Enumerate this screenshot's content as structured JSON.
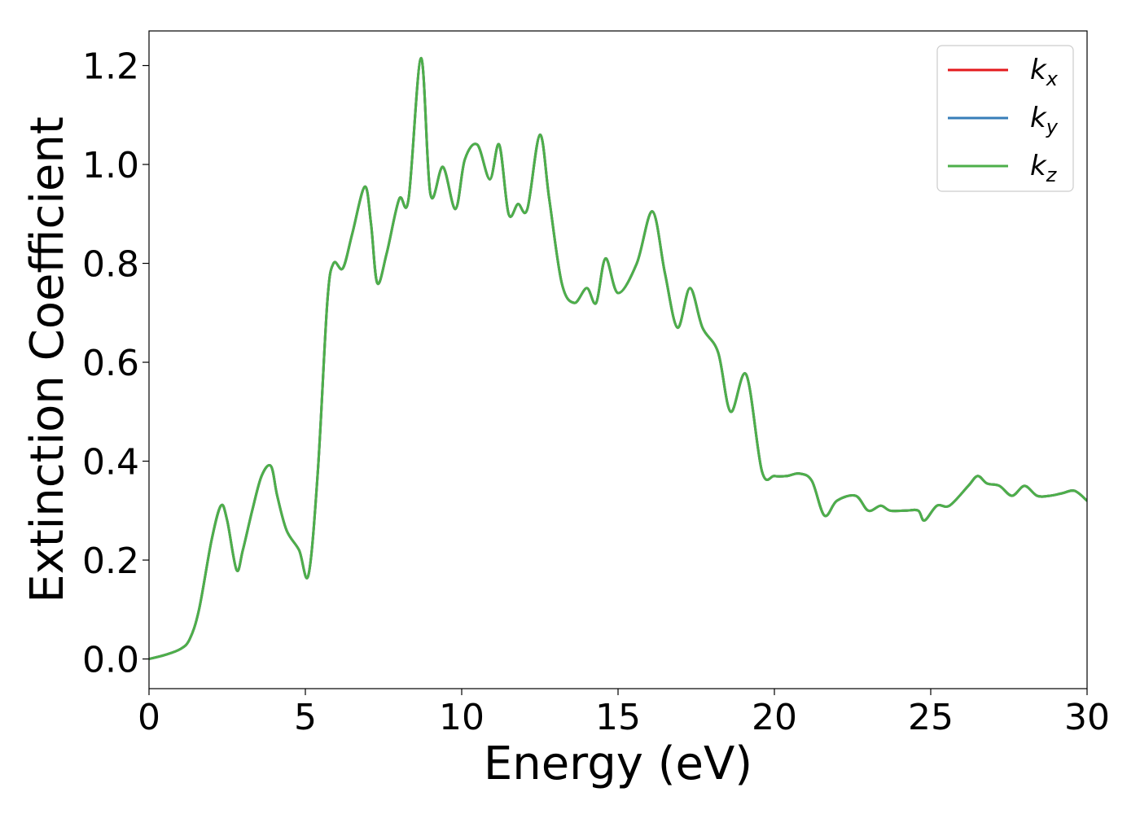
{
  "chart_data": {
    "type": "line",
    "xlabel": "Energy (eV)",
    "ylabel": "Extinction Coefficient",
    "xlim": [
      0,
      30
    ],
    "ylim": [
      -0.06,
      1.27
    ],
    "xticks": [
      "0",
      "5",
      "10",
      "15",
      "20",
      "25",
      "30"
    ],
    "yticks": [
      "0.0",
      "0.2",
      "0.4",
      "0.6",
      "0.8",
      "1.0",
      "1.2"
    ],
    "grid": false,
    "legend_position": "top-right",
    "series": [
      {
        "name": "k_x",
        "label_main": "k",
        "label_sub": "x",
        "color": "#e41a1c",
        "x": [
          0,
          0.5,
          1.0,
          1.3,
          1.6,
          2.0,
          2.3,
          2.5,
          2.8,
          3.0,
          3.3,
          3.6,
          3.9,
          4.1,
          4.4,
          4.8,
          5.1,
          5.4,
          5.7,
          5.9,
          6.2,
          6.5,
          6.9,
          7.1,
          7.3,
          7.6,
          8.0,
          8.3,
          8.7,
          9.0,
          9.4,
          9.8,
          10.1,
          10.5,
          10.9,
          11.2,
          11.5,
          11.8,
          12.1,
          12.5,
          12.8,
          13.2,
          13.6,
          14.0,
          14.3,
          14.6,
          15.0,
          15.6,
          16.1,
          16.5,
          16.9,
          17.3,
          17.7,
          18.2,
          18.6,
          19.1,
          19.6,
          20.0,
          20.4,
          20.8,
          21.2,
          21.6,
          22.0,
          22.6,
          23.0,
          23.4,
          23.7,
          24.2,
          24.6,
          24.8,
          25.2,
          25.6,
          26.2,
          26.5,
          26.8,
          27.2,
          27.6,
          28.0,
          28.4,
          28.8,
          29.2,
          29.6,
          30.0
        ],
        "y": [
          0.0,
          0.008,
          0.02,
          0.04,
          0.1,
          0.24,
          0.31,
          0.28,
          0.18,
          0.22,
          0.3,
          0.37,
          0.39,
          0.33,
          0.26,
          0.22,
          0.17,
          0.38,
          0.72,
          0.8,
          0.79,
          0.86,
          0.955,
          0.88,
          0.76,
          0.82,
          0.93,
          0.93,
          1.215,
          0.94,
          0.995,
          0.91,
          1.01,
          1.04,
          0.97,
          1.04,
          0.9,
          0.92,
          0.91,
          1.06,
          0.93,
          0.76,
          0.72,
          0.75,
          0.72,
          0.81,
          0.74,
          0.8,
          0.905,
          0.78,
          0.67,
          0.75,
          0.67,
          0.62,
          0.5,
          0.575,
          0.38,
          0.37,
          0.37,
          0.375,
          0.36,
          0.29,
          0.32,
          0.33,
          0.3,
          0.31,
          0.3,
          0.3,
          0.3,
          0.28,
          0.31,
          0.31,
          0.35,
          0.37,
          0.355,
          0.35,
          0.33,
          0.35,
          0.33,
          0.33,
          0.335,
          0.34,
          0.32
        ]
      },
      {
        "name": "k_y",
        "label_main": "k",
        "label_sub": "y",
        "color": "#377eb8",
        "x": [
          0,
          0.5,
          1.0,
          1.3,
          1.6,
          2.0,
          2.3,
          2.5,
          2.8,
          3.0,
          3.3,
          3.6,
          3.9,
          4.1,
          4.4,
          4.8,
          5.1,
          5.4,
          5.7,
          5.9,
          6.2,
          6.5,
          6.9,
          7.1,
          7.3,
          7.6,
          8.0,
          8.3,
          8.7,
          9.0,
          9.4,
          9.8,
          10.1,
          10.5,
          10.9,
          11.2,
          11.5,
          11.8,
          12.1,
          12.5,
          12.8,
          13.2,
          13.6,
          14.0,
          14.3,
          14.6,
          15.0,
          15.6,
          16.1,
          16.5,
          16.9,
          17.3,
          17.7,
          18.2,
          18.6,
          19.1,
          19.6,
          20.0,
          20.4,
          20.8,
          21.2,
          21.6,
          22.0,
          22.6,
          23.0,
          23.4,
          23.7,
          24.2,
          24.6,
          24.8,
          25.2,
          25.6,
          26.2,
          26.5,
          26.8,
          27.2,
          27.6,
          28.0,
          28.4,
          28.8,
          29.2,
          29.6,
          30.0
        ],
        "y": [
          0.0,
          0.008,
          0.02,
          0.04,
          0.1,
          0.24,
          0.31,
          0.28,
          0.18,
          0.22,
          0.3,
          0.37,
          0.39,
          0.33,
          0.26,
          0.22,
          0.17,
          0.38,
          0.72,
          0.8,
          0.79,
          0.86,
          0.955,
          0.88,
          0.76,
          0.82,
          0.93,
          0.93,
          1.215,
          0.94,
          0.995,
          0.91,
          1.01,
          1.04,
          0.97,
          1.04,
          0.9,
          0.92,
          0.91,
          1.06,
          0.93,
          0.76,
          0.72,
          0.75,
          0.72,
          0.81,
          0.74,
          0.8,
          0.905,
          0.78,
          0.67,
          0.75,
          0.67,
          0.62,
          0.5,
          0.575,
          0.38,
          0.37,
          0.37,
          0.375,
          0.36,
          0.29,
          0.32,
          0.33,
          0.3,
          0.31,
          0.3,
          0.3,
          0.3,
          0.28,
          0.31,
          0.31,
          0.35,
          0.37,
          0.355,
          0.35,
          0.33,
          0.35,
          0.33,
          0.33,
          0.335,
          0.34,
          0.32
        ]
      },
      {
        "name": "k_z",
        "label_main": "k",
        "label_sub": "z",
        "color": "#4daf4a",
        "x": [
          0,
          0.5,
          1.0,
          1.3,
          1.6,
          2.0,
          2.3,
          2.5,
          2.8,
          3.0,
          3.3,
          3.6,
          3.9,
          4.1,
          4.4,
          4.8,
          5.1,
          5.4,
          5.7,
          5.9,
          6.2,
          6.5,
          6.9,
          7.1,
          7.3,
          7.6,
          8.0,
          8.3,
          8.7,
          9.0,
          9.4,
          9.8,
          10.1,
          10.5,
          10.9,
          11.2,
          11.5,
          11.8,
          12.1,
          12.5,
          12.8,
          13.2,
          13.6,
          14.0,
          14.3,
          14.6,
          15.0,
          15.6,
          16.1,
          16.5,
          16.9,
          17.3,
          17.7,
          18.2,
          18.6,
          19.1,
          19.6,
          20.0,
          20.4,
          20.8,
          21.2,
          21.6,
          22.0,
          22.6,
          23.0,
          23.4,
          23.7,
          24.2,
          24.6,
          24.8,
          25.2,
          25.6,
          26.2,
          26.5,
          26.8,
          27.2,
          27.6,
          28.0,
          28.4,
          28.8,
          29.2,
          29.6,
          30.0
        ],
        "y": [
          0.0,
          0.008,
          0.02,
          0.04,
          0.1,
          0.24,
          0.31,
          0.28,
          0.18,
          0.22,
          0.3,
          0.37,
          0.39,
          0.33,
          0.26,
          0.22,
          0.17,
          0.38,
          0.72,
          0.8,
          0.79,
          0.86,
          0.955,
          0.88,
          0.76,
          0.82,
          0.93,
          0.93,
          1.215,
          0.94,
          0.995,
          0.91,
          1.01,
          1.04,
          0.97,
          1.04,
          0.9,
          0.92,
          0.91,
          1.06,
          0.93,
          0.76,
          0.72,
          0.75,
          0.72,
          0.81,
          0.74,
          0.8,
          0.905,
          0.78,
          0.67,
          0.75,
          0.67,
          0.62,
          0.5,
          0.575,
          0.38,
          0.37,
          0.37,
          0.375,
          0.36,
          0.29,
          0.32,
          0.33,
          0.3,
          0.31,
          0.3,
          0.3,
          0.3,
          0.28,
          0.31,
          0.31,
          0.35,
          0.37,
          0.355,
          0.35,
          0.33,
          0.35,
          0.33,
          0.33,
          0.335,
          0.34,
          0.32
        ]
      }
    ]
  }
}
